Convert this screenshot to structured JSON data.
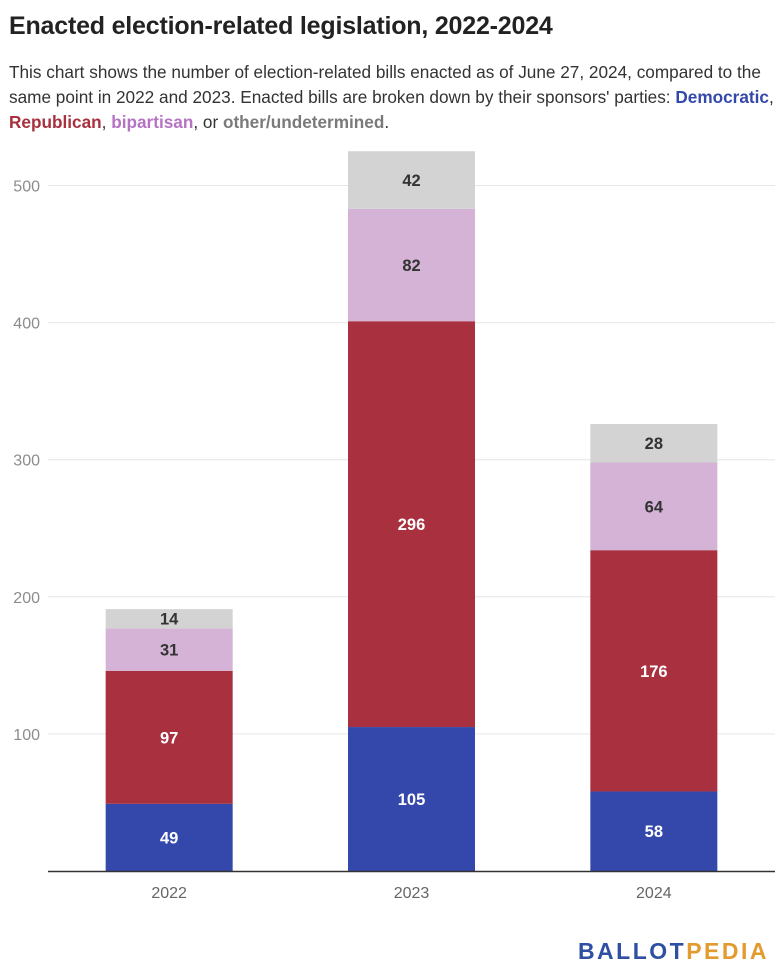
{
  "title": "Enacted election-related legislation, 2022-2024",
  "subtitle": {
    "text_before": "This chart shows the number of election-related bills enacted as of June 27, 2024, compared to the same point in 2022 and 2023. Enacted bills are broken down by their sponsors' parties: ",
    "democratic": "Democratic",
    "sep1": ", ",
    "republican": "Republican",
    "sep2": ", ",
    "bipartisan": "bipartisan",
    "sep3": ", or ",
    "other": "other/undetermined",
    "text_after": "."
  },
  "colors": {
    "democratic": "#3448ab",
    "republican": "#a8303f",
    "bipartisan": "#d4b3d6",
    "other": "#d3d3d3",
    "bipartisan_text": "#b673c4",
    "other_text": "#7a7a7a"
  },
  "chart_data": {
    "type": "bar",
    "stacked": true,
    "categories": [
      "2022",
      "2023",
      "2024"
    ],
    "series": [
      {
        "name": "Democratic",
        "values": [
          49,
          105,
          58
        ]
      },
      {
        "name": "Republican",
        "values": [
          97,
          296,
          176
        ]
      },
      {
        "name": "bipartisan",
        "values": [
          31,
          82,
          64
        ]
      },
      {
        "name": "other/undetermined",
        "values": [
          14,
          42,
          28
        ]
      }
    ],
    "yticks": [
      100,
      200,
      300,
      400,
      500
    ],
    "ylim": [
      0,
      525
    ],
    "grid": true
  },
  "logo": {
    "part1": "BALLOT",
    "part2": "PEDIA"
  }
}
